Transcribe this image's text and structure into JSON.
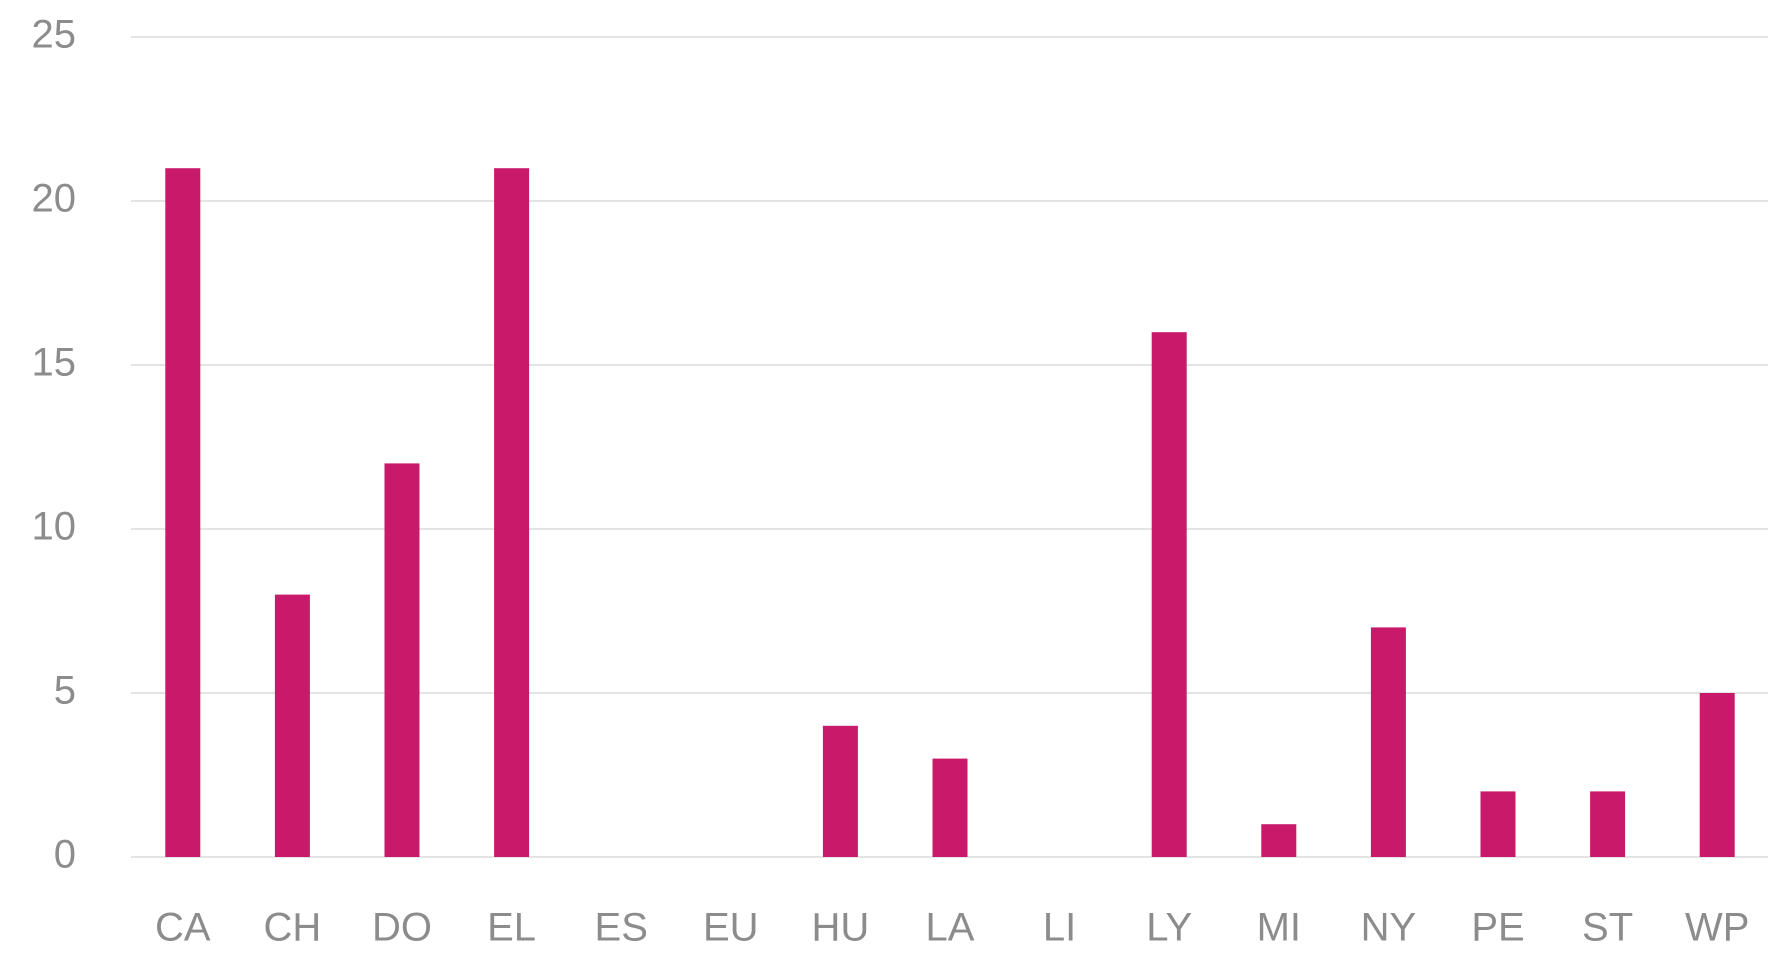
{
  "chart_data": {
    "type": "bar",
    "categories": [
      "CA",
      "CH",
      "DO",
      "EL",
      "ES",
      "EU",
      "HU",
      "LA",
      "LI",
      "LY",
      "MI",
      "NY",
      "PE",
      "ST",
      "WP"
    ],
    "values": [
      21,
      8,
      12,
      21,
      0,
      0,
      4,
      3,
      0,
      16,
      1,
      7,
      2,
      2,
      5
    ],
    "color": "#c8196b",
    "ylim": [
      0,
      25
    ],
    "yticks": [
      0,
      5,
      10,
      15,
      20,
      25
    ],
    "grid": true
  }
}
